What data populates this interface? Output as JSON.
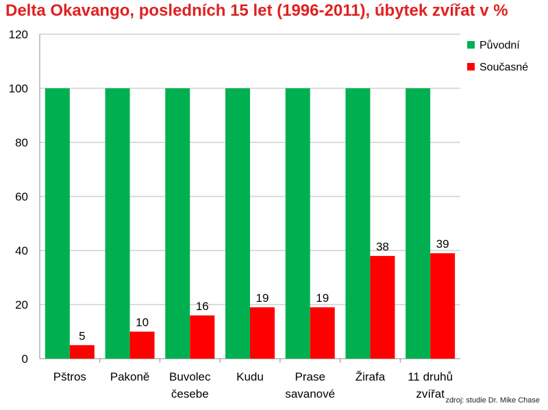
{
  "title": "Delta Okavango, posledních 15 let (1996-2011),  úbytek zvířat v %",
  "source_note": "zdroj: studie Dr. Mike Chase",
  "colors": {
    "title": "#e02020",
    "puvodni": "#00b050",
    "soucasne": "#ff0000",
    "grid": "#b8b8b8",
    "axis": "#888888"
  },
  "chart_data": {
    "type": "bar",
    "categories": [
      [
        "Pštros"
      ],
      [
        "Pakoně"
      ],
      [
        "Buvolec",
        "česebe"
      ],
      [
        "Kudu"
      ],
      [
        "Prase",
        "savanové"
      ],
      [
        "Žirafa"
      ],
      [
        "11 druhů",
        "zvířat"
      ]
    ],
    "series": [
      {
        "name": "Původní",
        "values": [
          100,
          100,
          100,
          100,
          100,
          100,
          100
        ],
        "show_labels": false
      },
      {
        "name": "Současné",
        "values": [
          5,
          10,
          16,
          19,
          19,
          38,
          39
        ],
        "show_labels": true
      }
    ],
    "ylim": [
      0,
      120
    ],
    "yticks": [
      0,
      20,
      40,
      60,
      80,
      100,
      120
    ],
    "grid": true,
    "legend_position": "top-right"
  }
}
